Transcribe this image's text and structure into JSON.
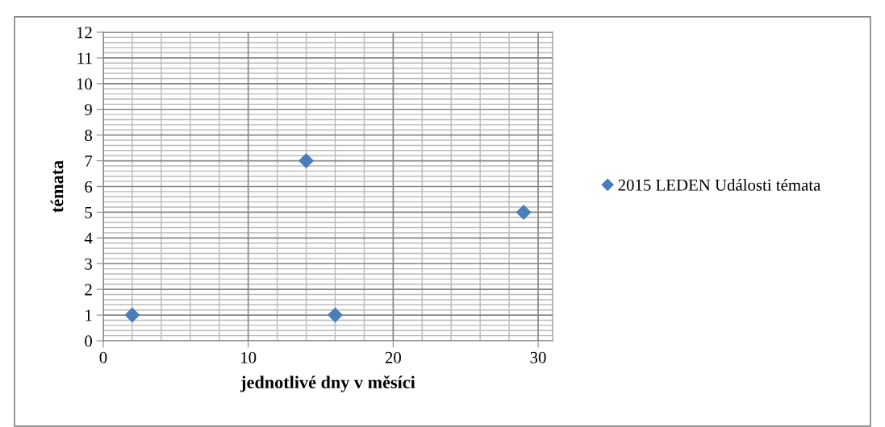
{
  "chart_data": {
    "type": "scatter",
    "xlabel": "jednotlivé dny v měsíci",
    "ylabel": "témata",
    "x": [
      2,
      14,
      16,
      29
    ],
    "series": [
      {
        "name": "2015 LEDEN Události témata",
        "color": "#4a7ebb",
        "values": [
          1,
          7,
          1,
          5
        ]
      }
    ],
    "xlim": [
      0,
      31
    ],
    "xticks": [
      0,
      10,
      20,
      30
    ],
    "ylim": [
      0,
      12
    ],
    "yticks": [
      0,
      1,
      2,
      3,
      4,
      5,
      6,
      7,
      8,
      9,
      10,
      11,
      12
    ],
    "grid": true,
    "legend": "right",
    "marker": "diamond"
  }
}
